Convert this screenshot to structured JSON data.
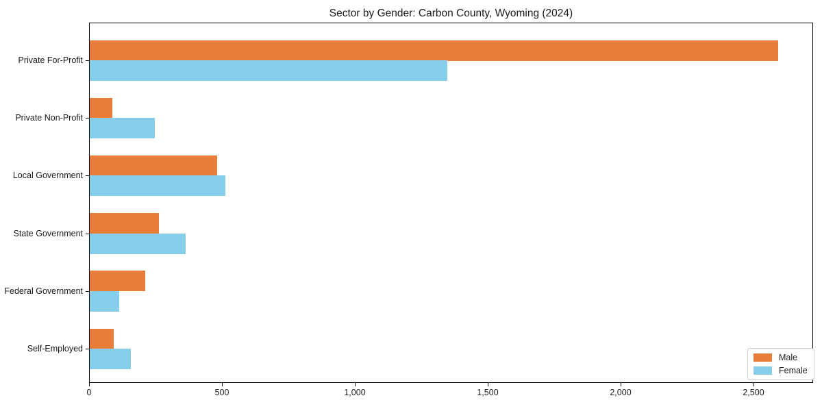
{
  "chart_data": {
    "type": "bar",
    "orientation": "horizontal",
    "title": "Sector by Gender: Carbon County, Wyoming (2024)",
    "categories": [
      "Private For-Profit",
      "Private Non-Profit",
      "Local Government",
      "State Government",
      "Federal Government",
      "Self-Employed"
    ],
    "series": [
      {
        "name": "Male",
        "color": "#E87E3A",
        "values": [
          2590,
          85,
          480,
          260,
          210,
          90
        ]
      },
      {
        "name": "Female",
        "color": "#87CEEB",
        "values": [
          1345,
          245,
          510,
          360,
          110,
          155
        ]
      }
    ],
    "xlabel": "",
    "ylabel": "",
    "xlim": [
      0,
      2725
    ],
    "xticks": {
      "values": [
        0,
        500,
        1000,
        1500,
        2000,
        2500
      ],
      "labels": [
        "0",
        "500",
        "1,000",
        "1,500",
        "2,000",
        "2,500"
      ]
    },
    "grid": false,
    "legend_position": "lower right"
  }
}
